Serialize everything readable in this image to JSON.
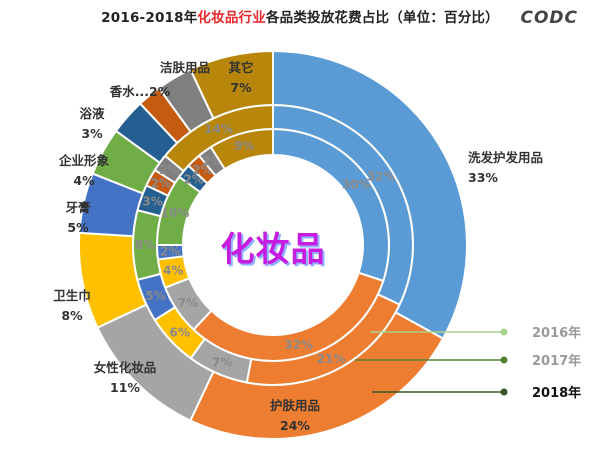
{
  "title": {
    "prefix": "2016-2018年",
    "highlight": "化妆品行业",
    "suffix": "各品类投放花费占比（单位：百分比）"
  },
  "logo": "CODC",
  "center_label": "化妆品",
  "legend": [
    {
      "label": "2016年",
      "color": "#a9d18e",
      "text_color": "#9a9a9a"
    },
    {
      "label": "2017年",
      "color": "#548235",
      "text_color": "#9a9a9a"
    },
    {
      "label": "2018年",
      "color": "#375623",
      "text_color": "#111111"
    }
  ],
  "chart_data": {
    "type": "donut",
    "title": "2016-2018年化妆品行业各品类投放花费占比（单位：百分比）",
    "center_text": "化妆品",
    "categories": [
      "洗发护发用品",
      "护肤用品",
      "女性化妆品",
      "卫生巾",
      "牙膏",
      "企业形象",
      "浴液",
      "香水",
      "洁肤用品",
      "其它"
    ],
    "colors": [
      "#5b9bd5",
      "#ed7d31",
      "#a5a5a5",
      "#ffc000",
      "#4472c4",
      "#70ad47",
      "#255e91",
      "#c55a11",
      "#7f7f7f",
      "#b8860b"
    ],
    "series": [
      {
        "name": "2016年",
        "ring": "inner",
        "values": [
          30,
          32,
          7,
          4,
          2,
          10,
          2,
          2,
          2,
          9
        ]
      },
      {
        "name": "2017年",
        "ring": "middle",
        "values": [
          32,
          21,
          7,
          6,
          5,
          8,
          3,
          2,
          2,
          14
        ]
      },
      {
        "name": "2018年",
        "ring": "outer",
        "values": [
          33,
          24,
          11,
          8,
          5,
          4,
          3,
          2,
          3,
          7
        ]
      }
    ],
    "outer_labels": [
      {
        "category": "洗发护发用品",
        "value": "33%"
      },
      {
        "category": "护肤用品",
        "value": "24%"
      },
      {
        "category": "女性化妆品",
        "value": "11%"
      },
      {
        "category": "卫生巾",
        "value": "8%"
      },
      {
        "category": "牙膏",
        "value": "5%"
      },
      {
        "category": "企业形象",
        "value": "4%"
      },
      {
        "category": "浴液",
        "value": "3%"
      },
      {
        "category": "香水...",
        "value": "2%"
      },
      {
        "category": "洁肤用品",
        "value": ""
      },
      {
        "category": "其它",
        "value": "7%"
      }
    ],
    "legend_position": "right"
  }
}
